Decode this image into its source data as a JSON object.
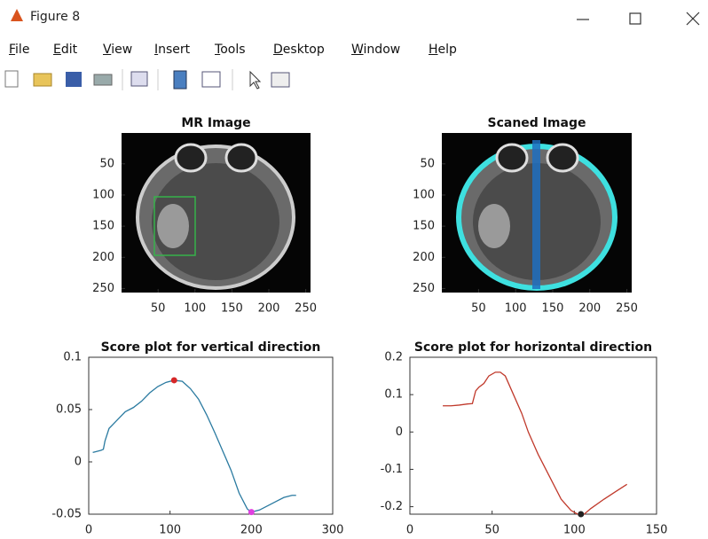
{
  "window": {
    "title": "Figure 8"
  },
  "menu": [
    "File",
    "Edit",
    "View",
    "Insert",
    "Tools",
    "Desktop",
    "Window",
    "Help"
  ],
  "chart_data": [
    {
      "type": "image",
      "title": "MR Image",
      "xlim": [
        0.5,
        256.5
      ],
      "ylim": [
        0.5,
        256.5
      ],
      "y_reversed": true,
      "xticks": [
        50,
        100,
        150,
        200,
        250
      ],
      "yticks": [
        50,
        100,
        150,
        200,
        250
      ]
    },
    {
      "type": "image",
      "title": "Scaned Image",
      "xlim": [
        0.5,
        256.5
      ],
      "ylim": [
        0.5,
        256.5
      ],
      "y_reversed": true,
      "xticks": [
        50,
        100,
        150,
        200,
        250
      ],
      "yticks": [
        50,
        100,
        150,
        200,
        250
      ]
    },
    {
      "type": "line",
      "title": "Score plot for vertical direction",
      "xlim": [
        0,
        300
      ],
      "ylim": [
        -0.05,
        0.1
      ],
      "xticks": [
        0,
        100,
        200,
        300
      ],
      "yticks": [
        -0.05,
        0,
        0.05,
        0.1
      ],
      "color": "#2a7aa0",
      "x": [
        5,
        15,
        18,
        20,
        25,
        35,
        45,
        55,
        65,
        75,
        85,
        95,
        105,
        115,
        125,
        135,
        145,
        155,
        165,
        175,
        185,
        195,
        200,
        210,
        220,
        230,
        240,
        250,
        255
      ],
      "values": [
        0.009,
        0.011,
        0.012,
        0.02,
        0.032,
        0.04,
        0.048,
        0.052,
        0.058,
        0.066,
        0.072,
        0.076,
        0.078,
        0.077,
        0.07,
        0.06,
        0.045,
        0.028,
        0.01,
        -0.008,
        -0.03,
        -0.045,
        -0.048,
        -0.046,
        -0.042,
        -0.038,
        -0.034,
        -0.032,
        -0.032
      ],
      "markers": [
        {
          "x": 105,
          "y": 0.078,
          "color": "#d62728"
        },
        {
          "x": 200,
          "y": -0.048,
          "color": "#e040e0"
        }
      ]
    },
    {
      "type": "line",
      "title": "Score plot for horizontal direction",
      "xlim": [
        0,
        150
      ],
      "ylim": [
        -0.22,
        0.2
      ],
      "xticks": [
        0,
        50,
        100,
        150
      ],
      "yticks": [
        -0.2,
        -0.1,
        0,
        0.1,
        0.2
      ],
      "color": "#c0392b",
      "x": [
        20,
        25,
        30,
        35,
        38,
        40,
        42,
        45,
        48,
        52,
        55,
        58,
        62,
        68,
        72,
        78,
        85,
        92,
        98,
        102,
        106,
        110,
        118,
        125,
        132
      ],
      "values": [
        0.07,
        0.07,
        0.072,
        0.075,
        0.076,
        0.11,
        0.12,
        0.13,
        0.15,
        0.16,
        0.16,
        0.15,
        0.11,
        0.05,
        0.0,
        -0.06,
        -0.12,
        -0.18,
        -0.21,
        -0.22,
        -0.22,
        -0.205,
        -0.18,
        -0.16,
        -0.14
      ],
      "markers": [
        {
          "x": 104,
          "y": -0.22,
          "color": "#222222"
        }
      ]
    }
  ]
}
